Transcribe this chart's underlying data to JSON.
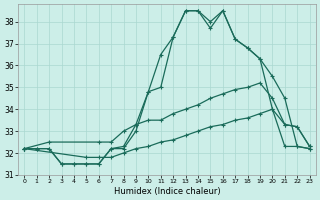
{
  "title": "",
  "xlabel": "Humidex (Indice chaleur)",
  "background_color": "#cceee8",
  "line_color": "#1a6b5a",
  "xlim": [
    -0.5,
    23.5
  ],
  "ylim": [
    31.0,
    38.8
  ],
  "yticks": [
    31,
    32,
    33,
    34,
    35,
    36,
    37,
    38
  ],
  "xticks": [
    0,
    1,
    2,
    3,
    4,
    5,
    6,
    7,
    8,
    9,
    10,
    11,
    12,
    13,
    14,
    15,
    16,
    17,
    18,
    19,
    20,
    21,
    22,
    23
  ],
  "series1_jagged": {
    "x": [
      0,
      1,
      2,
      3,
      4,
      5,
      6,
      7,
      8,
      9,
      10,
      11,
      12,
      13,
      14,
      15,
      16,
      17,
      18,
      19,
      20,
      21,
      22,
      23
    ],
    "y": [
      32.2,
      32.2,
      32.2,
      31.5,
      31.5,
      31.5,
      31.5,
      32.2,
      32.3,
      33.3,
      34.8,
      36.5,
      37.3,
      38.5,
      38.5,
      37.7,
      38.5,
      37.2,
      36.8,
      36.3,
      35.5,
      34.5,
      32.3,
      32.2
    ]
  },
  "series2_jagged": {
    "x": [
      0,
      1,
      2,
      3,
      4,
      5,
      6,
      7,
      8,
      9,
      10,
      11,
      12,
      13,
      14,
      15,
      16,
      17,
      18,
      19,
      20,
      21,
      22,
      23
    ],
    "y": [
      32.2,
      32.2,
      32.2,
      31.5,
      31.5,
      31.5,
      31.5,
      32.2,
      32.2,
      33.0,
      34.8,
      35.0,
      37.3,
      38.5,
      38.5,
      38.0,
      38.5,
      37.2,
      36.8,
      36.3,
      34.0,
      32.3,
      32.3,
      32.2
    ]
  },
  "series3_linear": {
    "x": [
      0,
      2,
      6,
      7,
      8,
      9,
      10,
      11,
      12,
      13,
      14,
      15,
      16,
      17,
      18,
      19,
      20,
      21,
      22,
      23
    ],
    "y": [
      32.2,
      32.5,
      32.5,
      32.5,
      33.0,
      33.3,
      33.5,
      33.5,
      33.8,
      34.0,
      34.2,
      34.5,
      34.7,
      34.9,
      35.0,
      35.2,
      34.5,
      33.3,
      33.2,
      32.3
    ]
  },
  "series4_linear": {
    "x": [
      0,
      5,
      6,
      7,
      8,
      9,
      10,
      11,
      12,
      13,
      14,
      15,
      16,
      17,
      18,
      19,
      20,
      21,
      22,
      23
    ],
    "y": [
      32.2,
      31.8,
      31.8,
      31.8,
      32.0,
      32.2,
      32.3,
      32.5,
      32.6,
      32.8,
      33.0,
      33.2,
      33.3,
      33.5,
      33.6,
      33.8,
      34.0,
      33.3,
      33.2,
      32.3
    ]
  },
  "grid_color": "#aad8d0",
  "marker": "+"
}
